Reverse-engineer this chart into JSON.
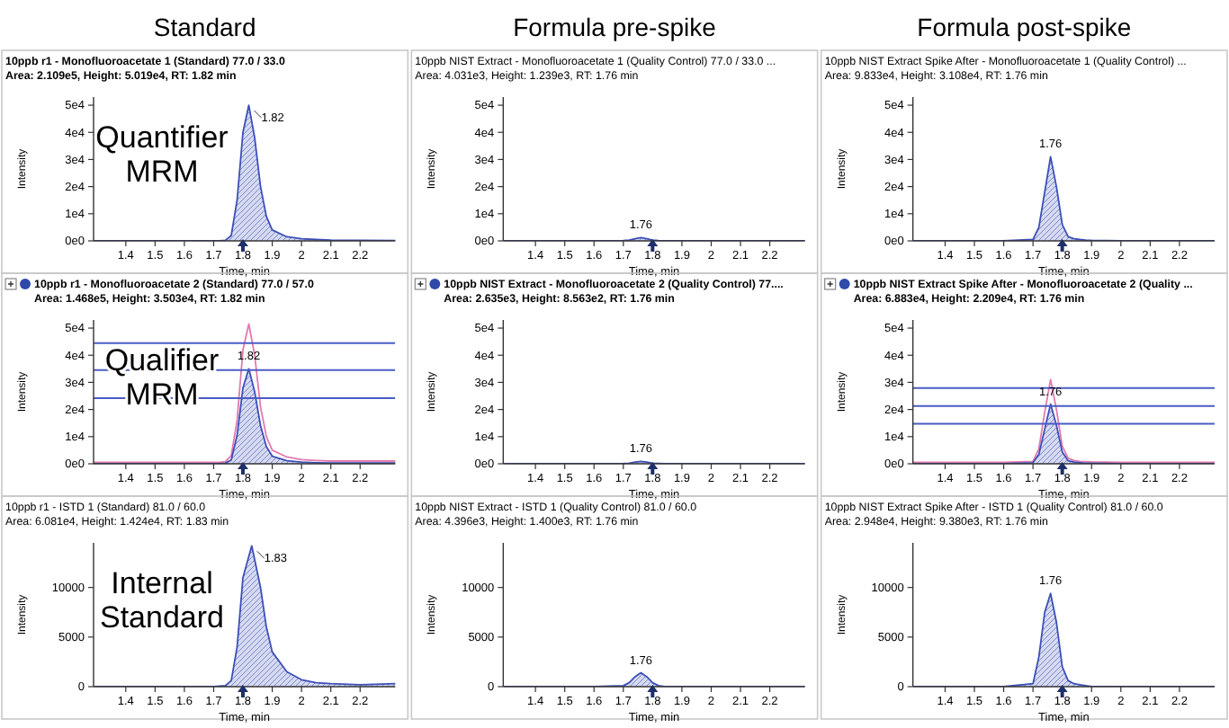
{
  "chart_data": [
    {
      "type": "area",
      "title": "10ppb r1 - Monofluoroacetate 1 (Standard) 77.0 / 33.0",
      "subtitle": "Area: 2.109e5, Height: 5.019e4, RT: 1.82 min",
      "xlabel": "Time, min",
      "ylabel": "Intensity",
      "xlim": [
        1.29,
        2.32
      ],
      "ylim": [
        0,
        53000
      ],
      "xticks": [
        1.4,
        1.5,
        1.6,
        1.7,
        1.8,
        1.9,
        2.0,
        2.1,
        2.2
      ],
      "yticks": [
        {
          "value": 0,
          "label": "0e0"
        },
        {
          "value": 10000,
          "label": "1e4"
        },
        {
          "value": 20000,
          "label": "2e4"
        },
        {
          "value": 30000,
          "label": "3e4"
        },
        {
          "value": 40000,
          "label": "4e4"
        },
        {
          "value": 50000,
          "label": "5e4"
        }
      ],
      "x": [
        1.29,
        1.4,
        1.5,
        1.6,
        1.7,
        1.72,
        1.74,
        1.76,
        1.78,
        1.8,
        1.82,
        1.84,
        1.86,
        1.88,
        1.9,
        1.95,
        2.0,
        2.05,
        2.1,
        2.2,
        2.32
      ],
      "series": [
        {
          "color": "#3c4fb8",
          "values": [
            0,
            0,
            0,
            0,
            0,
            0,
            200,
            2000,
            15000,
            40000,
            50000,
            38000,
            20000,
            9000,
            4000,
            1500,
            800,
            500,
            300,
            200,
            100
          ]
        }
      ],
      "annotations": [
        "Standard",
        "Quantifier MRM",
        {
          "text": "1.82",
          "x": 1.82,
          "y": 50000
        }
      ]
    },
    {
      "type": "area",
      "title": "10ppb NIST Extract - Monofluoroacetate 1 (Quality Control) 77.0 / 33.0 ...",
      "subtitle": "Area: 4.031e3, Height: 1.239e3, RT: 1.76 min",
      "xlabel": "Time, min",
      "ylabel": "Intensity",
      "xlim": [
        1.29,
        2.32
      ],
      "ylim": [
        0,
        53000
      ],
      "xticks": [
        1.4,
        1.5,
        1.6,
        1.7,
        1.8,
        1.9,
        2.0,
        2.1,
        2.2
      ],
      "yticks": [
        {
          "value": 0,
          "label": "0e0"
        },
        {
          "value": 10000,
          "label": "1e4"
        },
        {
          "value": 20000,
          "label": "2e4"
        },
        {
          "value": 30000,
          "label": "3e4"
        },
        {
          "value": 40000,
          "label": "4e4"
        },
        {
          "value": 50000,
          "label": "5e4"
        }
      ],
      "x": [
        1.29,
        1.4,
        1.5,
        1.6,
        1.7,
        1.72,
        1.74,
        1.76,
        1.78,
        1.8,
        1.82,
        1.84,
        1.86,
        1.88,
        1.9,
        1.95,
        2.0,
        2.05,
        2.1,
        2.2,
        2.32
      ],
      "series": [
        {
          "color": "#3c4fb8",
          "values": [
            0,
            0,
            0,
            0,
            100,
            300,
            800,
            1200,
            800,
            300,
            100,
            0,
            0,
            0,
            0,
            0,
            0,
            0,
            0,
            0,
            0
          ]
        }
      ],
      "annotations": [
        "Formula pre-spike",
        {
          "text": "1.76",
          "x": 1.76,
          "y": 1200
        }
      ]
    },
    {
      "type": "area",
      "title": "10ppb NIST Extract Spike After - Monofluoroacetate 1 (Quality Control) ...",
      "subtitle": "Area: 9.833e4, Height: 3.108e4, RT: 1.76 min",
      "xlabel": "Time, min",
      "ylabel": "Intensity",
      "xlim": [
        1.29,
        2.32
      ],
      "ylim": [
        0,
        53000
      ],
      "xticks": [
        1.4,
        1.5,
        1.6,
        1.7,
        1.8,
        1.9,
        2.0,
        2.1,
        2.2
      ],
      "yticks": [
        {
          "value": 0,
          "label": "0e0"
        },
        {
          "value": 10000,
          "label": "1e4"
        },
        {
          "value": 20000,
          "label": "2e4"
        },
        {
          "value": 30000,
          "label": "3e4"
        },
        {
          "value": 40000,
          "label": "4e4"
        },
        {
          "value": 50000,
          "label": "5e4"
        }
      ],
      "x": [
        1.29,
        1.4,
        1.5,
        1.6,
        1.7,
        1.72,
        1.74,
        1.76,
        1.78,
        1.8,
        1.82,
        1.84,
        1.86,
        1.88,
        1.9,
        1.95,
        2.0,
        2.05,
        2.1,
        2.2,
        2.32
      ],
      "series": [
        {
          "color": "#3c4fb8",
          "values": [
            0,
            0,
            0,
            0,
            500,
            5000,
            18000,
            31000,
            20000,
            6000,
            1500,
            800,
            500,
            300,
            200,
            100,
            0,
            0,
            0,
            0,
            0
          ]
        }
      ],
      "annotations": [
        "Formula post-spike",
        {
          "text": "1.76",
          "x": 1.76,
          "y": 31000
        }
      ]
    },
    {
      "type": "area",
      "title": "10ppb r1 - Monofluoroacetate 2 (Standard) 77.0 / 57.0",
      "subtitle": "Area: 1.468e5, Height: 3.503e4, RT: 1.82 min",
      "xlabel": "Time, min",
      "ylabel": "Intensity",
      "xlim": [
        1.29,
        2.32
      ],
      "ylim": [
        0,
        53000
      ],
      "xticks": [
        1.4,
        1.5,
        1.6,
        1.7,
        1.8,
        1.9,
        2.0,
        2.1,
        2.2
      ],
      "yticks": [
        {
          "value": 0,
          "label": "0e0"
        },
        {
          "value": 10000,
          "label": "1e4"
        },
        {
          "value": 20000,
          "label": "2e4"
        },
        {
          "value": 30000,
          "label": "3e4"
        },
        {
          "value": 40000,
          "label": "4e4"
        },
        {
          "value": 50000,
          "label": "5e4"
        }
      ],
      "x": [
        1.29,
        1.4,
        1.5,
        1.6,
        1.7,
        1.72,
        1.74,
        1.76,
        1.78,
        1.8,
        1.82,
        1.84,
        1.86,
        1.88,
        1.9,
        1.95,
        2.0,
        2.05,
        2.1,
        2.2,
        2.32
      ],
      "series": [
        {
          "type": "line",
          "color": "#e07ab0",
          "values": [
            500,
            500,
            500,
            500,
            500,
            500,
            800,
            3000,
            16000,
            42000,
            51500,
            40000,
            21000,
            10000,
            5000,
            2500,
            1500,
            1200,
            1000,
            1000,
            1000
          ]
        },
        {
          "color": "#3c4fb8",
          "values": [
            0,
            0,
            0,
            0,
            0,
            0,
            200,
            1400,
            10500,
            28000,
            35000,
            26500,
            14000,
            6300,
            2800,
            1100,
            600,
            400,
            300,
            300,
            300
          ]
        }
      ],
      "ref_lines": [
        {
          "axis": "y",
          "value": 44500,
          "color": "#4a5cc4"
        },
        {
          "axis": "y",
          "value": 34500,
          "color": "#4a5cc4"
        },
        {
          "axis": "y",
          "value": 24200,
          "color": "#4a5cc4"
        }
      ],
      "annotations": [
        "Qualifier MRM",
        {
          "text": "1.82",
          "x": 1.82,
          "y": 35000
        }
      ]
    },
    {
      "type": "area",
      "title": "10ppb NIST Extract - Monofluoroacetate 2 (Quality Control) 77....",
      "subtitle": "Area: 2.635e3, Height: 8.563e2, RT: 1.76 min",
      "xlabel": "Time, min",
      "ylabel": "Intensity",
      "xlim": [
        1.29,
        2.32
      ],
      "ylim": [
        0,
        53000
      ],
      "xticks": [
        1.4,
        1.5,
        1.6,
        1.7,
        1.8,
        1.9,
        2.0,
        2.1,
        2.2
      ],
      "yticks": [
        {
          "value": 0,
          "label": "0e0"
        },
        {
          "value": 10000,
          "label": "1e4"
        },
        {
          "value": 20000,
          "label": "2e4"
        },
        {
          "value": 30000,
          "label": "3e4"
        },
        {
          "value": 40000,
          "label": "4e4"
        },
        {
          "value": 50000,
          "label": "5e4"
        }
      ],
      "x": [
        1.29,
        1.4,
        1.5,
        1.6,
        1.7,
        1.72,
        1.74,
        1.76,
        1.78,
        1.8,
        1.82,
        1.84,
        1.86,
        1.88,
        1.9,
        1.95,
        2.0,
        2.05,
        2.1,
        2.2,
        2.32
      ],
      "series": [
        {
          "color": "#3c4fb8",
          "values": [
            0,
            0,
            0,
            0,
            100,
            200,
            600,
            900,
            600,
            200,
            100,
            0,
            0,
            0,
            0,
            0,
            0,
            0,
            0,
            0,
            0
          ]
        }
      ],
      "annotations": [
        {
          "text": "1.76",
          "x": 1.76,
          "y": 900
        }
      ]
    },
    {
      "type": "area",
      "title": "10ppb NIST Extract Spike After - Monofluoroacetate 2 (Quality ...",
      "subtitle": "Area: 6.883e4, Height: 2.209e4, RT: 1.76 min",
      "xlabel": "Time, min",
      "ylabel": "Intensity",
      "xlim": [
        1.29,
        2.32
      ],
      "ylim": [
        0,
        53000
      ],
      "xticks": [
        1.4,
        1.5,
        1.6,
        1.7,
        1.8,
        1.9,
        2.0,
        2.1,
        2.2
      ],
      "yticks": [
        {
          "value": 0,
          "label": "0e0"
        },
        {
          "value": 10000,
          "label": "1e4"
        },
        {
          "value": 20000,
          "label": "2e4"
        },
        {
          "value": 30000,
          "label": "3e4"
        },
        {
          "value": 40000,
          "label": "4e4"
        },
        {
          "value": 50000,
          "label": "5e4"
        }
      ],
      "x": [
        1.29,
        1.4,
        1.5,
        1.6,
        1.7,
        1.72,
        1.74,
        1.76,
        1.78,
        1.8,
        1.82,
        1.84,
        1.86,
        1.88,
        1.9,
        1.95,
        2.0,
        2.05,
        2.1,
        2.2,
        2.32
      ],
      "series": [
        {
          "type": "line",
          "color": "#e07ab0",
          "values": [
            500,
            500,
            500,
            500,
            900,
            5500,
            19000,
            31000,
            20000,
            6500,
            2000,
            1200,
            900,
            800,
            700,
            600,
            500,
            500,
            500,
            500,
            500
          ]
        },
        {
          "color": "#3c4fb8",
          "values": [
            0,
            0,
            0,
            0,
            400,
            3500,
            12800,
            22000,
            14200,
            4300,
            1100,
            600,
            400,
            200,
            200,
            100,
            0,
            0,
            0,
            0,
            0
          ]
        }
      ],
      "ref_lines": [
        {
          "axis": "y",
          "value": 27900,
          "color": "#4a5cc4"
        },
        {
          "axis": "y",
          "value": 21300,
          "color": "#4a5cc4"
        },
        {
          "axis": "y",
          "value": 14700,
          "color": "#4a5cc4"
        }
      ],
      "annotations": [
        {
          "text": "1.76",
          "x": 1.76,
          "y": 22000
        }
      ]
    },
    {
      "type": "area",
      "title": "10ppb r1 - ISTD 1 (Standard) 81.0 / 60.0",
      "subtitle": "Area: 6.081e4, Height: 1.424e4, RT: 1.83 min",
      "xlabel": "Time, min",
      "ylabel": "Intensity",
      "xlim": [
        1.29,
        2.32
      ],
      "ylim": [
        0,
        14500
      ],
      "xticks": [
        1.4,
        1.5,
        1.6,
        1.7,
        1.8,
        1.9,
        2.0,
        2.1,
        2.2
      ],
      "yticks": [
        0,
        5000,
        10000
      ],
      "x": [
        1.29,
        1.4,
        1.5,
        1.6,
        1.7,
        1.74,
        1.76,
        1.78,
        1.8,
        1.83,
        1.86,
        1.88,
        1.9,
        1.95,
        2.0,
        2.05,
        2.1,
        2.2,
        2.32
      ],
      "series": [
        {
          "color": "#3c4fb8",
          "values": [
            0,
            0,
            0,
            0,
            0,
            100,
            600,
            4000,
            11000,
            14200,
            10000,
            6000,
            3500,
            1500,
            700,
            400,
            300,
            200,
            300
          ]
        }
      ],
      "annotations": [
        "Internal Standard",
        {
          "text": "1.83",
          "x": 1.83,
          "y": 14200
        }
      ]
    },
    {
      "type": "area",
      "title": "10ppb NIST Extract - ISTD 1 (Quality Control) 81.0 / 60.0",
      "subtitle": "Area: 4.396e3, Height: 1.400e3, RT: 1.76 min",
      "xlabel": "Time, min",
      "ylabel": "Intensity",
      "xlim": [
        1.29,
        2.32
      ],
      "ylim": [
        0,
        14500
      ],
      "xticks": [
        1.4,
        1.5,
        1.6,
        1.7,
        1.8,
        1.9,
        2.0,
        2.1,
        2.2
      ],
      "yticks": [
        0,
        5000,
        10000
      ],
      "x": [
        1.29,
        1.4,
        1.5,
        1.6,
        1.7,
        1.72,
        1.74,
        1.76,
        1.78,
        1.8,
        1.82,
        1.84,
        1.86,
        1.88,
        1.9,
        1.95,
        2.0,
        2.05,
        2.1,
        2.2,
        2.32
      ],
      "series": [
        {
          "color": "#3c4fb8",
          "values": [
            0,
            0,
            0,
            0,
            100,
            400,
            1000,
            1400,
            1000,
            400,
            100,
            0,
            0,
            0,
            0,
            0,
            0,
            0,
            0,
            0,
            0
          ]
        }
      ],
      "annotations": [
        {
          "text": "1.76",
          "x": 1.76,
          "y": 1400
        }
      ]
    },
    {
      "type": "area",
      "title": "10ppb NIST Extract Spike After - ISTD 1 (Quality Control) 81.0 / 60.0",
      "subtitle": "Area: 2.948e4, Height: 9.380e3, RT: 1.76 min",
      "xlabel": "Time, min",
      "ylabel": "Intensity",
      "xlim": [
        1.29,
        2.32
      ],
      "ylim": [
        0,
        14500
      ],
      "xticks": [
        1.4,
        1.5,
        1.6,
        1.7,
        1.8,
        1.9,
        2.0,
        2.1,
        2.2
      ],
      "yticks": [
        0,
        5000,
        10000
      ],
      "x": [
        1.29,
        1.4,
        1.5,
        1.6,
        1.7,
        1.72,
        1.74,
        1.76,
        1.78,
        1.8,
        1.82,
        1.84,
        1.86,
        1.88,
        1.9,
        1.95,
        2.0,
        2.05,
        2.1,
        2.2,
        2.32
      ],
      "series": [
        {
          "color": "#3c4fb8",
          "values": [
            0,
            0,
            0,
            0,
            300,
            3000,
            7500,
            9400,
            6500,
            2000,
            600,
            300,
            200,
            100,
            0,
            0,
            0,
            0,
            0,
            0,
            0
          ]
        }
      ],
      "annotations": [
        {
          "text": "1.76",
          "x": 1.76,
          "y": 9400
        }
      ]
    }
  ]
}
